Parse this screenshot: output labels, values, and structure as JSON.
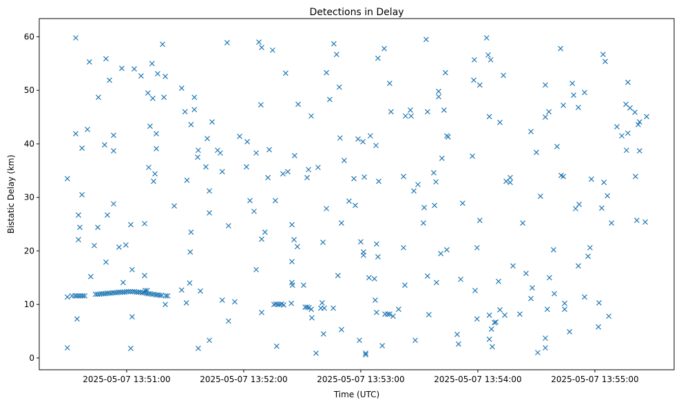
{
  "chart_data": {
    "type": "scatter",
    "title": "Detections in Delay",
    "xlabel": "Time (UTC)",
    "ylabel": "Bistatic Delay (km)",
    "x_units": "seconds after 2025-05-07 13:50:00 UTC",
    "xlim": [
      15.2,
      340.6
    ],
    "ylim": [
      -2.2,
      63.4
    ],
    "grid": false,
    "marker": "x",
    "color": "#1f77b4",
    "xticks": [
      {
        "value": 60,
        "label": "2025-05-07 13:51:00"
      },
      {
        "value": 120,
        "label": "2025-05-07 13:52:00"
      },
      {
        "value": 180,
        "label": "2025-05-07 13:53:00"
      },
      {
        "value": 240,
        "label": "2025-05-07 13:54:00"
      },
      {
        "value": 300,
        "label": "2025-05-07 13:55:00"
      }
    ],
    "yticks": [
      {
        "value": 0,
        "label": "0"
      },
      {
        "value": 10,
        "label": "10"
      },
      {
        "value": 20,
        "label": "20"
      },
      {
        "value": 30,
        "label": "30"
      },
      {
        "value": 40,
        "label": "40"
      },
      {
        "value": 50,
        "label": "50"
      },
      {
        "value": 60,
        "label": "60"
      }
    ],
    "points": [
      [
        29.6,
        33.5
      ],
      [
        29.6,
        1.9
      ],
      [
        29.6,
        11.4
      ],
      [
        33.9,
        59.8
      ],
      [
        33.9,
        41.9
      ],
      [
        34.6,
        7.3
      ],
      [
        32,
        11.6
      ],
      [
        33.5,
        11.6
      ],
      [
        34.5,
        11.6
      ],
      [
        35.5,
        11.6
      ],
      [
        36.5,
        11.6
      ],
      [
        37.5,
        11.6
      ],
      [
        38.5,
        11.6
      ],
      [
        35.3,
        26.7
      ],
      [
        36,
        24.4
      ],
      [
        35.3,
        22.1
      ],
      [
        37.1,
        39.2
      ],
      [
        37.1,
        30.5
      ],
      [
        39.9,
        42.7
      ],
      [
        40.9,
        55.3
      ],
      [
        41.6,
        15.2
      ],
      [
        43.4,
        21
      ],
      [
        45.2,
        24.4
      ],
      [
        45.5,
        48.7
      ],
      [
        48.7,
        39.8
      ],
      [
        49.4,
        55.9
      ],
      [
        49.4,
        17.9
      ],
      [
        50.1,
        26.7
      ],
      [
        51.2,
        51.9
      ],
      [
        53.3,
        41.6
      ],
      [
        53.3,
        38.7
      ],
      [
        53.3,
        28.8
      ],
      [
        56.1,
        20.7
      ],
      [
        57.5,
        54.1
      ],
      [
        58.2,
        14.1
      ],
      [
        59.6,
        21.1
      ],
      [
        62.1,
        24.9
      ],
      [
        62.8,
        16.5
      ],
      [
        62.8,
        7.7
      ],
      [
        62.1,
        1.8
      ],
      [
        63.9,
        54
      ],
      [
        67.4,
        52.7
      ],
      [
        69.2,
        25.1
      ],
      [
        69.2,
        15.4
      ],
      [
        70.9,
        49.5
      ],
      [
        72,
        43.3
      ],
      [
        73,
        55
      ],
      [
        73.4,
        48.5
      ],
      [
        73.8,
        33
      ],
      [
        74.5,
        34.4
      ],
      [
        75.2,
        41.9
      ],
      [
        75.2,
        39.1
      ],
      [
        71.3,
        35.6
      ],
      [
        75.9,
        53.1
      ],
      [
        78.4,
        58.6
      ],
      [
        79.8,
        52.6
      ],
      [
        79.1,
        48.7
      ],
      [
        79.8,
        10
      ],
      [
        44,
        11.9
      ],
      [
        45,
        11.9
      ],
      [
        46,
        11.9
      ],
      [
        47,
        12.0
      ],
      [
        48,
        12.0
      ],
      [
        49,
        12.0
      ],
      [
        50,
        12.1
      ],
      [
        51,
        12.1
      ],
      [
        52,
        12.1
      ],
      [
        53,
        12.2
      ],
      [
        54,
        12.2
      ],
      [
        55,
        12.2
      ],
      [
        56,
        12.3
      ],
      [
        57,
        12.3
      ],
      [
        58,
        12.3
      ],
      [
        59,
        12.3
      ],
      [
        60,
        12.4
      ],
      [
        61,
        12.4
      ],
      [
        62,
        12.4
      ],
      [
        63,
        12.4
      ],
      [
        64,
        12.4
      ],
      [
        65,
        12.3
      ],
      [
        66,
        12.3
      ],
      [
        67,
        12.3
      ],
      [
        68,
        12.2
      ],
      [
        69,
        12.2
      ],
      [
        69.5,
        12.6
      ],
      [
        70,
        12.1
      ],
      [
        70.5,
        12.6
      ],
      [
        71,
        12.0
      ],
      [
        72,
        12.0
      ],
      [
        73,
        11.9
      ],
      [
        74,
        11.9
      ],
      [
        75,
        11.8
      ],
      [
        76,
        11.8
      ],
      [
        77,
        11.7
      ],
      [
        78,
        11.7
      ],
      [
        80,
        11.6
      ],
      [
        81,
        11.6
      ],
      [
        84.4,
        28.4
      ],
      [
        88.2,
        50.4
      ],
      [
        88.2,
        12.7
      ],
      [
        89.9,
        46
      ],
      [
        90.9,
        33.2
      ],
      [
        90.6,
        10.3
      ],
      [
        93,
        43.6
      ],
      [
        92.6,
        19.8
      ],
      [
        93,
        23.5
      ],
      [
        92.3,
        14
      ],
      [
        94.7,
        48.7
      ],
      [
        94.7,
        46.4
      ],
      [
        96.4,
        37.5
      ],
      [
        96.7,
        38.8
      ],
      [
        96.7,
        1.8
      ],
      [
        97.8,
        12.5
      ],
      [
        100.6,
        35.7
      ],
      [
        101.3,
        41
      ],
      [
        102.4,
        31.2
      ],
      [
        102.4,
        27.1
      ],
      [
        102.4,
        3.3
      ],
      [
        103.8,
        44.1
      ],
      [
        106.6,
        38.8
      ],
      [
        108,
        38.3
      ],
      [
        109,
        34.8
      ],
      [
        109,
        10.8
      ],
      [
        111.5,
        58.9
      ],
      [
        112.2,
        24.7
      ],
      [
        112.2,
        6.9
      ],
      [
        115.4,
        10.5
      ],
      [
        117.9,
        41.4
      ],
      [
        121.4,
        35.7
      ],
      [
        121.8,
        40.4
      ],
      [
        123.2,
        29.4
      ],
      [
        125.3,
        27.4
      ],
      [
        126.4,
        16.5
      ],
      [
        126.4,
        38.3
      ],
      [
        127.8,
        59
      ],
      [
        128.8,
        47.3
      ],
      [
        129.2,
        58
      ],
      [
        129.2,
        8.5
      ],
      [
        129.2,
        22.2
      ],
      [
        130.9,
        23.5
      ],
      [
        132.4,
        33.7
      ],
      [
        133.1,
        38.9
      ],
      [
        134.8,
        57.5
      ],
      [
        136.2,
        29.4
      ],
      [
        136.9,
        2.2
      ],
      [
        135.5,
        10.0
      ],
      [
        136.5,
        10.1
      ],
      [
        137.5,
        10.0
      ],
      [
        138.5,
        10.0
      ],
      [
        139.5,
        10.1
      ],
      [
        140.5,
        9.9
      ],
      [
        140.1,
        34.4
      ],
      [
        141.5,
        53.2
      ],
      [
        142.6,
        34.8
      ],
      [
        144.4,
        10.2
      ],
      [
        144.7,
        14.1
      ],
      [
        144.7,
        18
      ],
      [
        144.7,
        24.9
      ],
      [
        145,
        13.6
      ],
      [
        145.8,
        22.1
      ],
      [
        146.1,
        37.8
      ],
      [
        147.5,
        20.8
      ],
      [
        147.9,
        47.4
      ],
      [
        150.7,
        13.6
      ],
      [
        151.5,
        9.5
      ],
      [
        152.5,
        9.5
      ],
      [
        153.5,
        9.4
      ],
      [
        154.6,
        9.1
      ],
      [
        152.5,
        33.7
      ],
      [
        153.2,
        35.2
      ],
      [
        154.6,
        45.2
      ],
      [
        154.9,
        7.5
      ],
      [
        157.1,
        0.9
      ],
      [
        158.1,
        35.6
      ],
      [
        159.5,
        9.3
      ],
      [
        160.2,
        10.3
      ],
      [
        160.6,
        21.6
      ],
      [
        160.9,
        4.5
      ],
      [
        161.3,
        9.3
      ],
      [
        162.4,
        53.3
      ],
      [
        162.4,
        27.9
      ],
      [
        164.1,
        48.3
      ],
      [
        165.9,
        9.3
      ],
      [
        166.2,
        58.7
      ],
      [
        167.6,
        56.7
      ],
      [
        168.3,
        15.4
      ],
      [
        169,
        50.6
      ],
      [
        169.4,
        41.1
      ],
      [
        170.1,
        25.2
      ],
      [
        170.1,
        5.3
      ],
      [
        171.5,
        36.9
      ],
      [
        174,
        29.3
      ],
      [
        176.5,
        33.5
      ],
      [
        177.2,
        28.5
      ],
      [
        178.6,
        40.9
      ],
      [
        179.3,
        3.3
      ],
      [
        180,
        21.7
      ],
      [
        181.1,
        40.4
      ],
      [
        181.4,
        19.8
      ],
      [
        181.4,
        19.2
      ],
      [
        181.8,
        33.8
      ],
      [
        182.5,
        0.9
      ],
      [
        182.5,
        0.6
      ],
      [
        184.2,
        15
      ],
      [
        184.9,
        41.5
      ],
      [
        187,
        14.8
      ],
      [
        187.4,
        10.8
      ],
      [
        187.8,
        39.7
      ],
      [
        188.1,
        21.3
      ],
      [
        188.1,
        8.5
      ],
      [
        188.8,
        56
      ],
      [
        188.8,
        18.9
      ],
      [
        189.2,
        33
      ],
      [
        191,
        2.3
      ],
      [
        192,
        57.8
      ],
      [
        192.4,
        8.2
      ],
      [
        193.8,
        8.2
      ],
      [
        194.8,
        8.2
      ],
      [
        194.8,
        51.3
      ],
      [
        195.5,
        46
      ],
      [
        196.6,
        7.8
      ],
      [
        199.4,
        9.1
      ],
      [
        201.9,
        20.6
      ],
      [
        201.9,
        33.9
      ],
      [
        202.6,
        13.6
      ],
      [
        202.9,
        45.2
      ],
      [
        205.4,
        46.3
      ],
      [
        205.8,
        45.2
      ],
      [
        207.2,
        31.2
      ],
      [
        207.9,
        3.3
      ],
      [
        209.3,
        32.4
      ],
      [
        212.1,
        25.2
      ],
      [
        212.5,
        28.1
      ],
      [
        213.5,
        59.5
      ],
      [
        214.2,
        15.3
      ],
      [
        214.2,
        46
      ],
      [
        214.9,
        8.1
      ],
      [
        217.4,
        34.6
      ],
      [
        217.8,
        28.5
      ],
      [
        218.5,
        32.9
      ],
      [
        218.8,
        14.1
      ],
      [
        219.9,
        49.8
      ],
      [
        219.9,
        48.8
      ],
      [
        221,
        19.5
      ],
      [
        221.6,
        37.3
      ],
      [
        222.7,
        46.3
      ],
      [
        223.4,
        53.3
      ],
      [
        224.1,
        20.2
      ],
      [
        224.1,
        41.5
      ],
      [
        224.8,
        41.3
      ],
      [
        229.4,
        4.4
      ],
      [
        230.1,
        2.6
      ],
      [
        231.2,
        14.7
      ],
      [
        232.2,
        28.9
      ],
      [
        237.2,
        37.7
      ],
      [
        237.9,
        51.9
      ],
      [
        238.2,
        55.7
      ],
      [
        238.6,
        12.6
      ],
      [
        239.6,
        20.6
      ],
      [
        239.6,
        7.3
      ],
      [
        241,
        51
      ],
      [
        241,
        25.7
      ],
      [
        244.5,
        59.8
      ],
      [
        245.3,
        56.6
      ],
      [
        245.9,
        45.1
      ],
      [
        246.6,
        55.7
      ],
      [
        245.9,
        8
      ],
      [
        245.9,
        3.5
      ],
      [
        247,
        5.4
      ],
      [
        247.4,
        2.1
      ],
      [
        248.5,
        6.6
      ],
      [
        249.2,
        6.7
      ],
      [
        250.6,
        14.3
      ],
      [
        251.3,
        9
      ],
      [
        251.3,
        44
      ],
      [
        253.1,
        52.8
      ],
      [
        253.8,
        8
      ],
      [
        254.5,
        33
      ],
      [
        256.6,
        33.7
      ],
      [
        256.6,
        32.8
      ],
      [
        258,
        17.2
      ],
      [
        261.5,
        8.2
      ],
      [
        263,
        25.2
      ],
      [
        264.7,
        15.8
      ],
      [
        267.2,
        42.3
      ],
      [
        267.2,
        11.1
      ],
      [
        267.9,
        13.1
      ],
      [
        270,
        38.4
      ],
      [
        270.7,
        1
      ],
      [
        272.1,
        30.2
      ],
      [
        274.6,
        1.9
      ],
      [
        274.6,
        3.7
      ],
      [
        274.6,
        51
      ],
      [
        274.6,
        45
      ],
      [
        275.6,
        9.1
      ],
      [
        276.4,
        46
      ],
      [
        276.7,
        15
      ],
      [
        278.8,
        20.2
      ],
      [
        279.2,
        12
      ],
      [
        280.6,
        39.5
      ],
      [
        282.4,
        57.8
      ],
      [
        282.7,
        34.1
      ],
      [
        283.8,
        33.9
      ],
      [
        283.8,
        47.2
      ],
      [
        284.5,
        9.1
      ],
      [
        284.5,
        10.2
      ],
      [
        287,
        4.9
      ],
      [
        288.4,
        51.3
      ],
      [
        289.1,
        49.1
      ],
      [
        290.1,
        27.9
      ],
      [
        291.5,
        17.2
      ],
      [
        291.9,
        28.7
      ],
      [
        291.5,
        46.8
      ],
      [
        294.7,
        49.6
      ],
      [
        294.7,
        11.4
      ],
      [
        296.5,
        19
      ],
      [
        297.5,
        20.6
      ],
      [
        298.2,
        33.4
      ],
      [
        301.8,
        5.8
      ],
      [
        302.1,
        10.3
      ],
      [
        304.2,
        56.7
      ],
      [
        305.3,
        55.4
      ],
      [
        303.5,
        28
      ],
      [
        304.6,
        32.8
      ],
      [
        306.4,
        30.3
      ],
      [
        307.1,
        7.8
      ],
      [
        308.5,
        25.2
      ],
      [
        311.3,
        43.2
      ],
      [
        313.8,
        41.5
      ],
      [
        315.9,
        47.4
      ],
      [
        316.2,
        38.8
      ],
      [
        316.9,
        42
      ],
      [
        316.9,
        51.5
      ],
      [
        318,
        46.7
      ],
      [
        320.5,
        45.9
      ],
      [
        320.8,
        33.9
      ],
      [
        321.5,
        25.7
      ],
      [
        322.2,
        43.6
      ],
      [
        322.9,
        44.1
      ],
      [
        322.9,
        38.7
      ],
      [
        325.8,
        25.4
      ],
      [
        326.5,
        45.1
      ]
    ]
  }
}
